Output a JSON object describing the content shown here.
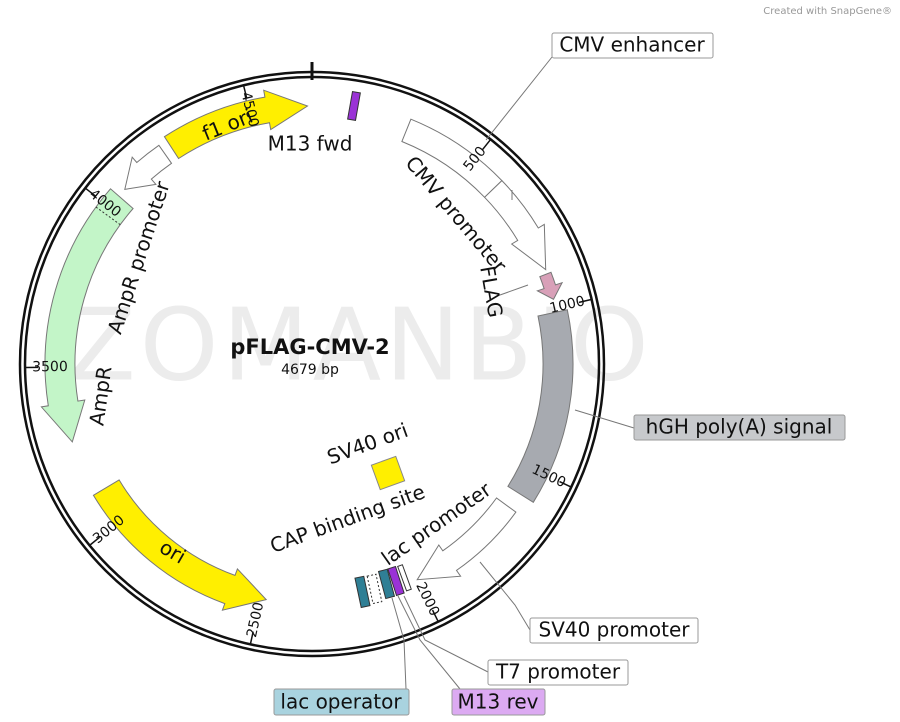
{
  "header": {
    "credit": "Created with SnapGene®"
  },
  "watermark": "ZOMANBIO",
  "map": {
    "name": "pFLAG-CMV-2",
    "length": "4679 bp",
    "ticks": [
      "500",
      "1000",
      "1500",
      "2000",
      "2500",
      "3000",
      "3500",
      "4000",
      "4500"
    ]
  },
  "features": {
    "cmv_enhancer": "CMV enhancer",
    "cmv_promoter": "CMV promoter",
    "flag": "FLAG",
    "hgh_polya": "hGH poly(A) signal",
    "sv40_promoter": "SV40 promoter",
    "t7_promoter": "T7 promoter",
    "m13_rev": "M13 rev",
    "lac_operator": "lac operator",
    "lac_promoter": "lac promoter",
    "cap_site": "CAP binding site",
    "sv40_ori": "SV40 ori",
    "ori": "ori",
    "ampr": "AmpR",
    "ampr_promoter": "AmpR promoter",
    "f1_ori": "f1 ori",
    "m13_fwd": "M13 fwd"
  }
}
